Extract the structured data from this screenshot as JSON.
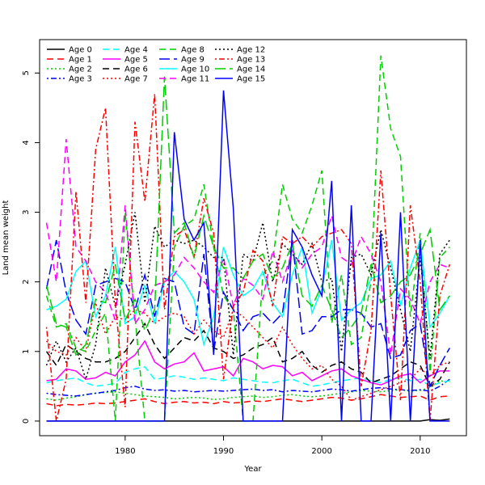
{
  "chart_data": {
    "type": "line",
    "title": "",
    "xlabel": "Year",
    "ylabel": "Land mean weight",
    "xlim": [
      1971.3,
      2014.7
    ],
    "ylim": [
      -0.21,
      5.48
    ],
    "x_ticks": [
      1980,
      1990,
      2000,
      2010
    ],
    "y_ticks": [
      0,
      1,
      2,
      3,
      4,
      5
    ],
    "grid": false,
    "legend_position": "top-left",
    "x": [
      1972,
      1973,
      1974,
      1975,
      1976,
      1977,
      1978,
      1979,
      1980,
      1981,
      1982,
      1983,
      1984,
      1985,
      1986,
      1987,
      1988,
      1989,
      1990,
      1991,
      1992,
      1993,
      1994,
      1995,
      1996,
      1997,
      1998,
      1999,
      2000,
      2001,
      2002,
      2003,
      2004,
      2005,
      2006,
      2007,
      2008,
      2009,
      2010,
      2011,
      2012,
      2013
    ],
    "series": [
      {
        "name": "Age 0",
        "color": "#000000",
        "dash": "solid",
        "values": [
          0,
          0,
          0,
          0,
          0,
          0,
          0,
          0,
          0,
          0,
          0,
          0,
          0,
          0,
          0,
          0,
          0,
          0,
          0,
          0,
          0,
          0,
          0,
          0,
          0,
          0,
          0,
          0,
          0,
          0,
          0,
          0,
          0,
          0,
          0,
          0,
          0,
          0,
          0,
          0.02,
          0.01,
          0.03
        ]
      },
      {
        "name": "Age 1",
        "color": "#ff0000",
        "dash": "dashed",
        "values": [
          0.25,
          0.22,
          0.24,
          0.23,
          0.24,
          0.26,
          0.25,
          0.26,
          0.28,
          0.3,
          0.32,
          0.28,
          0.25,
          0.27,
          0.28,
          0.26,
          0.27,
          0.25,
          0.28,
          0.26,
          0.27,
          0.29,
          0.28,
          0.3,
          0.32,
          0.3,
          0.28,
          0.3,
          0.32,
          0.34,
          0.33,
          0.3,
          0.32,
          0.35,
          0.38,
          0.36,
          0.34,
          0.35,
          0.36,
          0.3,
          0.35,
          0.36
        ]
      },
      {
        "name": "Age 2",
        "color": "#00cd00",
        "dash": "dotted",
        "values": [
          0.32,
          0.3,
          0.33,
          0.35,
          0.38,
          0.4,
          0.41,
          0.42,
          0.4,
          0.38,
          0.36,
          0.35,
          0.34,
          0.32,
          0.33,
          0.34,
          0.33,
          0.31,
          0.32,
          0.34,
          0.35,
          0.36,
          0.34,
          0.35,
          0.37,
          0.38,
          0.36,
          0.35,
          0.36,
          0.38,
          0.4,
          0.42,
          0.44,
          0.43,
          0.42,
          0.44,
          0.45,
          0.43,
          0.44,
          0.48,
          0.58,
          0.56
        ]
      },
      {
        "name": "Age 3",
        "color": "#0000ff",
        "dash": "dashdot",
        "values": [
          0.4,
          0.38,
          0.37,
          0.36,
          0.38,
          0.4,
          0.42,
          0.44,
          0.48,
          0.5,
          0.46,
          0.44,
          0.45,
          0.43,
          0.44,
          0.42,
          0.43,
          0.44,
          0.43,
          0.44,
          0.45,
          0.46,
          0.44,
          0.45,
          0.42,
          0.44,
          0.43,
          0.42,
          0.44,
          0.46,
          0.45,
          0.43,
          0.45,
          0.47,
          0.48,
          0.46,
          0.45,
          0.44,
          0.45,
          0.43,
          0.5,
          0.6
        ]
      },
      {
        "name": "Age 4",
        "color": "#00ffff",
        "dash": "dashed",
        "values": [
          0.55,
          0.58,
          0.6,
          0.62,
          0.55,
          0.5,
          0.52,
          0.54,
          0.7,
          0.75,
          0.78,
          0.6,
          0.62,
          0.65,
          0.63,
          0.6,
          0.62,
          0.6,
          0.58,
          0.62,
          0.6,
          0.58,
          0.56,
          0.55,
          0.58,
          0.6,
          0.55,
          0.5,
          0.52,
          0.55,
          0.58,
          0.6,
          0.62,
          0.58,
          0.55,
          0.6,
          0.62,
          0.58,
          0.6,
          0.5,
          0.55,
          0.58
        ]
      },
      {
        "name": "Age 5",
        "color": "#ff00ff",
        "dash": "solid",
        "values": [
          0.58,
          0.6,
          0.75,
          0.72,
          0.6,
          0.62,
          0.7,
          0.65,
          0.85,
          0.95,
          1.15,
          0.85,
          0.75,
          0.82,
          0.85,
          0.98,
          0.72,
          0.75,
          0.78,
          0.65,
          0.9,
          0.85,
          0.75,
          0.8,
          0.78,
          0.65,
          0.7,
          0.58,
          0.65,
          0.72,
          0.75,
          0.65,
          0.6,
          0.55,
          0.52,
          0.58,
          0.65,
          0.68,
          0.55,
          0.65,
          0.72,
          0.72
        ]
      },
      {
        "name": "Age 6",
        "color": "#000000",
        "dash": "dashed",
        "values": [
          1.0,
          0.8,
          1.1,
          1.0,
          0.9,
          0.85,
          0.85,
          0.9,
          1.0,
          1.2,
          1.4,
          1.1,
          0.9,
          1.05,
          1.2,
          1.15,
          1.3,
          1.05,
          1.0,
          0.9,
          0.95,
          1.05,
          1.1,
          1.2,
          0.85,
          0.9,
          1.0,
          0.8,
          0.7,
          0.8,
          0.85,
          0.75,
          0.7,
          0.55,
          0.6,
          0.65,
          0.75,
          0.85,
          0.8,
          0.5,
          0.6,
          0.85
        ]
      },
      {
        "name": "Age 7",
        "color": "#ff0000",
        "dash": "dotted",
        "values": [
          1.15,
          1.0,
          0.95,
          1.2,
          1.0,
          1.7,
          1.25,
          1.5,
          1.45,
          1.6,
          1.55,
          1.4,
          1.5,
          1.55,
          1.5,
          1.25,
          1.45,
          1.3,
          1.2,
          1.6,
          1.5,
          1.35,
          1.2,
          1.05,
          1.35,
          1.1,
          0.9,
          0.75,
          0.8,
          0.6,
          0.5,
          0.3,
          0.35,
          0.4,
          0.45,
          0.5,
          0.55,
          0.6,
          0.75,
          0.65,
          0.8,
          0.85
        ]
      },
      {
        "name": "Age 8",
        "color": "#00cd00",
        "dash": "dashed",
        "values": [
          1.8,
          1.35,
          1.4,
          1.05,
          1.0,
          1.3,
          1.55,
          0,
          3.0,
          1.5,
          0,
          0,
          0,
          2.5,
          2.8,
          2.9,
          3.4,
          2.5,
          1.8,
          1.6,
          0,
          0,
          2.1,
          2.3,
          3.4,
          2.9,
          2.7,
          3.1,
          3.6,
          1.4,
          2.1,
          1.1,
          1.2,
          2.0,
          5.25,
          4.2,
          3.8,
          1.5,
          2.7,
          0.7,
          2.35,
          2.5
        ]
      },
      {
        "name": "Age 9",
        "color": "#0000ff",
        "dash": "longdash",
        "values": [
          1.9,
          2.6,
          1.85,
          1.45,
          1.25,
          1.95,
          2.0,
          2.05,
          2.0,
          1.6,
          2.1,
          1.5,
          2.05,
          2.0,
          1.35,
          1.25,
          2.4,
          1.0,
          1.85,
          1.6,
          1.3,
          1.5,
          1.55,
          1.4,
          1.55,
          2.6,
          1.25,
          1.3,
          1.5,
          1.5,
          1.6,
          1.6,
          1.55,
          1.35,
          1.4,
          0.9,
          0.95,
          1.3,
          1.4,
          0.5,
          0.8,
          1.05
        ]
      },
      {
        "name": "Age 10",
        "color": "#00ffff",
        "dash": "solid",
        "values": [
          1.6,
          1.65,
          1.75,
          2.15,
          2.3,
          1.5,
          1.8,
          2.5,
          1.4,
          1.5,
          1.95,
          1.4,
          2.0,
          2.15,
          2.0,
          1.75,
          1.1,
          1.5,
          2.5,
          2.1,
          1.8,
          1.9,
          2.15,
          1.7,
          1.5,
          2.1,
          2.5,
          1.55,
          1.9,
          2.6,
          1.45,
          1.6,
          1.7,
          2.05,
          2.1,
          2.3,
          1.65,
          2.2,
          2.6,
          1.35,
          1.55,
          1.8
        ]
      },
      {
        "name": "Age 11",
        "color": "#ff00ff",
        "dash": "dashed",
        "values": [
          2.85,
          2.0,
          4.05,
          2.5,
          2.3,
          2.0,
          1.85,
          1.45,
          3.1,
          1.4,
          1.6,
          1.95,
          2.0,
          2.1,
          2.35,
          2.2,
          2.0,
          1.85,
          2.35,
          1.65,
          2.05,
          1.95,
          1.75,
          2.45,
          2.0,
          2.45,
          2.2,
          2.4,
          2.5,
          2.95,
          2.35,
          2.25,
          2.65,
          2.4,
          2.0,
          0.95,
          1.9,
          1.75,
          1.4,
          2.0,
          2.25,
          2.2
        ]
      },
      {
        "name": "Age 12",
        "color": "#000000",
        "dash": "dotted",
        "values": [
          0.8,
          1.15,
          0.85,
          1.05,
          0.6,
          1.1,
          2.2,
          1.65,
          2.25,
          3.0,
          1.7,
          2.8,
          2.5,
          2.6,
          2.55,
          2.6,
          2.5,
          2.35,
          2.35,
          0.95,
          2.4,
          2.3,
          2.85,
          2.0,
          2.55,
          2.4,
          2.25,
          2.55,
          2.0,
          2.05,
          1.0,
          2.35,
          2.4,
          2.1,
          2.75,
          2.2,
          1.6,
          1.0,
          2.35,
          0.9,
          2.4,
          2.6
        ]
      },
      {
        "name": "Age 13",
        "color": "#ff0000",
        "dash": "dashdot",
        "values": [
          1.35,
          0,
          0.6,
          3.3,
          1.7,
          3.9,
          4.5,
          1.7,
          0.2,
          4.3,
          3.15,
          4.7,
          1.6,
          2.65,
          2.75,
          2.35,
          3.2,
          2.7,
          0.6,
          1.65,
          1.85,
          2.45,
          2.3,
          1.65,
          2.65,
          2.55,
          2.65,
          2.5,
          2.65,
          2.7,
          2.75,
          2.55,
          0.5,
          1.3,
          3.6,
          1.8,
          0.3,
          3.1,
          2.0,
          0,
          1.8,
          2.25
        ]
      },
      {
        "name": "Age 14",
        "color": "#00cd00",
        "dash": "longdash",
        "values": [
          1.95,
          1.4,
          1.35,
          0.95,
          1.1,
          1.75,
          1.7,
          2.25,
          1.45,
          1.75,
          1.3,
          1.6,
          4.95,
          2.7,
          2.85,
          2.35,
          2.95,
          2.5,
          2.2,
          2.2,
          2.05,
          2.3,
          2.4,
          2.05,
          2.2,
          2.55,
          1.8,
          1.65,
          1.95,
          1.6,
          1.2,
          1.35,
          1.55,
          2.25,
          1.7,
          1.8,
          2.0,
          2.1,
          2.4,
          2.75,
          1.6,
          1.8
        ]
      },
      {
        "name": "Age 15",
        "color": "#0000ff",
        "dash": "solid",
        "values": [
          0,
          0,
          0,
          0,
          0,
          0,
          0,
          0,
          0,
          0,
          0,
          0,
          0,
          4.15,
          2.9,
          2.6,
          2.85,
          0.95,
          4.75,
          3.05,
          0,
          0,
          0,
          0,
          0,
          2.75,
          2.5,
          2.1,
          1.8,
          3.45,
          0,
          3.1,
          0,
          0,
          2.7,
          0,
          3.0,
          0,
          2.6,
          0,
          0,
          0
        ]
      }
    ]
  }
}
